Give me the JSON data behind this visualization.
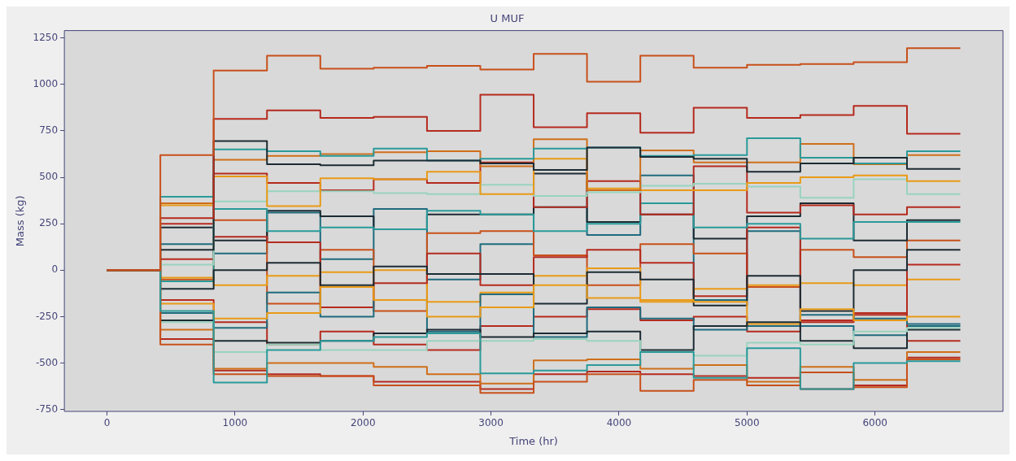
{
  "chart_data": {
    "type": "step",
    "title": "U MUF",
    "xlabel": "Time (hr)",
    "ylabel": "Mass (kg)",
    "x": [
      0,
      416.67,
      833.33,
      1250,
      1666.67,
      2083.33,
      2500,
      2916.67,
      3333.33,
      3750,
      4166.67,
      4583.33,
      5000,
      5416.67,
      5833.33,
      6250,
      6666.67
    ],
    "xlim": [
      -333,
      7000
    ],
    "xticks": [
      0,
      1000,
      2000,
      3000,
      4000,
      5000,
      6000
    ],
    "ylim": [
      -760,
      1290
    ],
    "yticks": [
      -750,
      -500,
      -250,
      0,
      250,
      500,
      750,
      1000,
      1250
    ],
    "grid": false,
    "legend": false,
    "marker": "none",
    "line_style": "solid",
    "series": [
      {
        "color": "#c8501a",
        "values": [
          0,
          620,
          1075,
          1155,
          1085,
          1090,
          1100,
          1080,
          1165,
          1015,
          1155,
          1090,
          1105,
          1110,
          1120,
          1195,
          1195
        ]
      },
      {
        "color": "#b52a1e",
        "values": [
          0,
          280,
          815,
          860,
          820,
          825,
          750,
          945,
          770,
          845,
          740,
          875,
          820,
          835,
          885,
          735,
          735
        ]
      },
      {
        "color": "#1c2b33",
        "values": [
          0,
          110,
          695,
          570,
          565,
          590,
          590,
          575,
          540,
          660,
          610,
          600,
          530,
          575,
          605,
          545,
          545
        ]
      },
      {
        "color": "#2a9a9a",
        "values": [
          0,
          395,
          650,
          640,
          615,
          655,
          590,
          600,
          655,
          660,
          615,
          620,
          710,
          605,
          575,
          640,
          640
        ]
      },
      {
        "color": "#cf6f1a",
        "values": [
          0,
          360,
          595,
          615,
          625,
          635,
          640,
          560,
          705,
          430,
          645,
          580,
          580,
          680,
          570,
          620,
          620
        ]
      },
      {
        "color": "#e99a16",
        "values": [
          0,
          350,
          505,
          345,
          495,
          490,
          530,
          410,
          600,
          440,
          430,
          430,
          470,
          500,
          510,
          480,
          480
        ]
      },
      {
        "color": "#99d3bf",
        "values": [
          0,
          30,
          370,
          425,
          425,
          415,
          410,
          460,
          400,
          420,
          455,
          465,
          450,
          390,
          490,
          410,
          410
        ]
      },
      {
        "color": "#b52a1e",
        "values": [
          0,
          250,
          520,
          470,
          430,
          490,
          470,
          580,
          340,
          480,
          300,
          560,
          310,
          350,
          300,
          340,
          340
        ]
      },
      {
        "color": "#2a9a9a",
        "values": [
          0,
          -220,
          -605,
          -430,
          -380,
          -360,
          -340,
          -555,
          -540,
          -510,
          -440,
          -580,
          -420,
          -640,
          -500,
          -490,
          -490
        ]
      },
      {
        "color": "#c8501a",
        "values": [
          0,
          -400,
          -560,
          -570,
          -570,
          -620,
          -620,
          -660,
          -600,
          -560,
          -650,
          -590,
          -620,
          -550,
          -630,
          -480,
          -480
        ]
      },
      {
        "color": "#cf6f1a",
        "values": [
          0,
          -320,
          -530,
          -500,
          -500,
          -520,
          -560,
          -610,
          -485,
          -480,
          -530,
          -510,
          -600,
          -520,
          -590,
          -440,
          -440
        ]
      },
      {
        "color": "#b52a1e",
        "values": [
          0,
          -370,
          -540,
          -560,
          -570,
          -600,
          -600,
          -640,
          -560,
          -545,
          -560,
          -570,
          -580,
          -640,
          -620,
          -470,
          -470
        ]
      },
      {
        "color": "#99d3bf",
        "values": [
          0,
          -280,
          -440,
          -400,
          -430,
          -430,
          -380,
          -380,
          -370,
          -380,
          -440,
          -460,
          -390,
          -400,
          -330,
          -310,
          -310
        ]
      },
      {
        "color": "#1c2b33",
        "values": [
          0,
          -270,
          -380,
          -390,
          -380,
          -340,
          -320,
          -360,
          -340,
          -330,
          -430,
          -300,
          -280,
          -380,
          -420,
          -320,
          -320
        ]
      },
      {
        "color": "#e99a16",
        "values": [
          0,
          -180,
          -260,
          -230,
          -90,
          -160,
          -250,
          -200,
          -80,
          -150,
          -160,
          -170,
          -290,
          -210,
          -270,
          -250,
          -250
        ]
      },
      {
        "color": "#1c2b33",
        "values": [
          0,
          -100,
          0,
          40,
          -80,
          20,
          -20,
          -20,
          -180,
          -10,
          -50,
          -190,
          -30,
          -220,
          0,
          110,
          110
        ]
      },
      {
        "color": "#2a9a9a",
        "values": [
          0,
          -60,
          330,
          210,
          230,
          220,
          320,
          300,
          210,
          250,
          360,
          230,
          250,
          170,
          260,
          260,
          260
        ]
      },
      {
        "color": "#1f6b7e",
        "values": [
          0,
          -230,
          -310,
          -120,
          -250,
          -160,
          -330,
          -130,
          -360,
          -200,
          -260,
          -320,
          -300,
          -240,
          -260,
          -290,
          -290
        ]
      },
      {
        "color": "#b52a1e",
        "values": [
          0,
          60,
          180,
          150,
          -200,
          -70,
          90,
          -80,
          70,
          110,
          40,
          -140,
          230,
          -270,
          -240,
          30,
          30
        ]
      },
      {
        "color": "#e99a16",
        "values": [
          0,
          -40,
          -80,
          -30,
          -10,
          0,
          -170,
          -120,
          -30,
          10,
          -170,
          -100,
          -80,
          -70,
          -80,
          -50,
          -50
        ]
      },
      {
        "color": "#1c2b33",
        "values": [
          0,
          230,
          160,
          320,
          290,
          220,
          300,
          300,
          520,
          260,
          300,
          170,
          290,
          360,
          160,
          270,
          270
        ]
      },
      {
        "color": "#c8501a",
        "values": [
          0,
          -50,
          270,
          -180,
          110,
          -220,
          200,
          210,
          80,
          -80,
          140,
          90,
          -90,
          110,
          70,
          160,
          160
        ]
      },
      {
        "color": "#b52a1e",
        "values": [
          0,
          -160,
          -280,
          -400,
          -330,
          -400,
          -430,
          -300,
          -250,
          -210,
          -270,
          -250,
          -330,
          -280,
          -230,
          -380,
          -380
        ]
      },
      {
        "color": "#1f6b7e",
        "values": [
          0,
          140,
          90,
          310,
          60,
          330,
          -50,
          140,
          340,
          190,
          510,
          -160,
          210,
          -300,
          -350,
          -300,
          -300
        ]
      }
    ]
  }
}
